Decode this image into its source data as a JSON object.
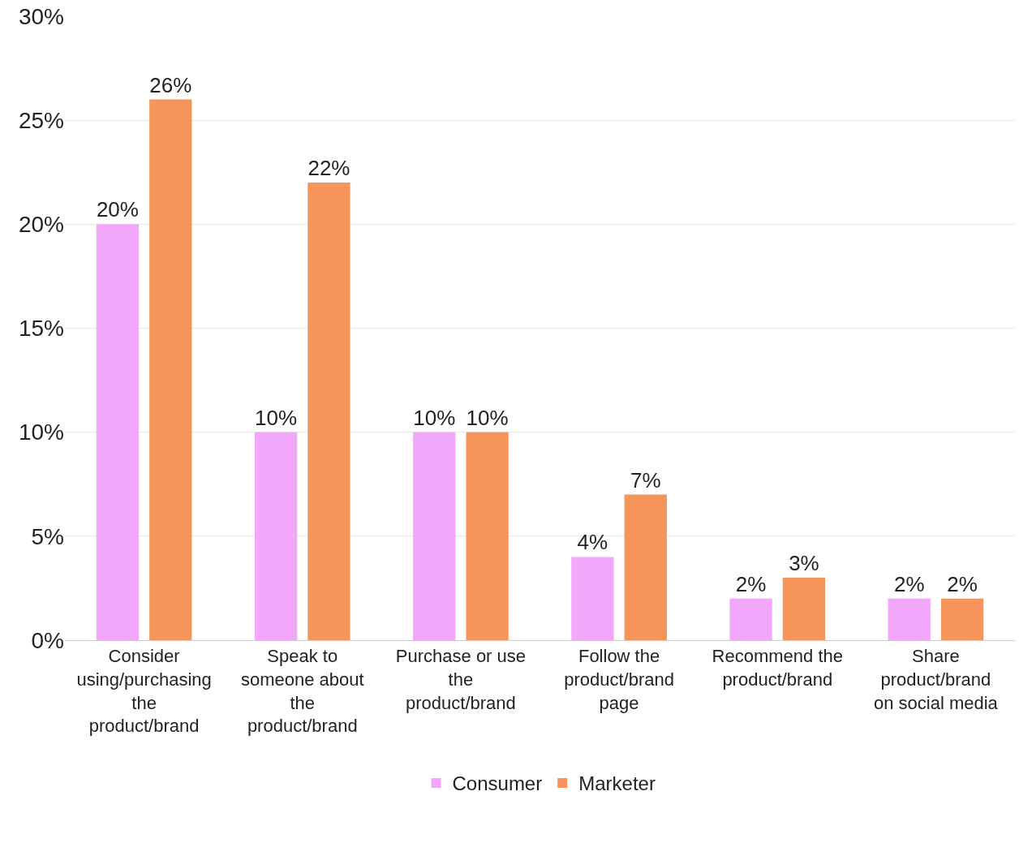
{
  "chart_data": {
    "type": "bar",
    "categories": [
      "Consider\nusing/purchasing\nthe\nproduct/brand",
      "Speak to\nsomeone about\nthe\nproduct/brand",
      "Purchase or use\nthe\nproduct/brand",
      "Follow the\nproduct/brand\npage",
      "Recommend the\nproduct/brand",
      "Share\nproduct/brand\non social media"
    ],
    "series": [
      {
        "name": "Consumer",
        "color": "#f2a8fa",
        "values": [
          20,
          10,
          10,
          4,
          2,
          2
        ],
        "value_labels": [
          "20%",
          "10%",
          "10%",
          "4%",
          "2%",
          "2%"
        ]
      },
      {
        "name": "Marketer",
        "color": "#f5955b",
        "values": [
          26,
          22,
          10,
          7,
          3,
          2
        ],
        "value_labels": [
          "26%",
          "22%",
          "10%",
          "7%",
          "3%",
          "2%"
        ]
      }
    ],
    "ylim": [
      0,
      30
    ],
    "yticks": [
      {
        "value": 0,
        "label": "0%"
      },
      {
        "value": 5,
        "label": "5%"
      },
      {
        "value": 10,
        "label": "10%"
      },
      {
        "value": 15,
        "label": "15%"
      },
      {
        "value": 20,
        "label": "20%"
      },
      {
        "value": 25,
        "label": "25%"
      },
      {
        "value": 30,
        "label": "30%"
      }
    ],
    "grid": "y",
    "legend": "bottom"
  }
}
